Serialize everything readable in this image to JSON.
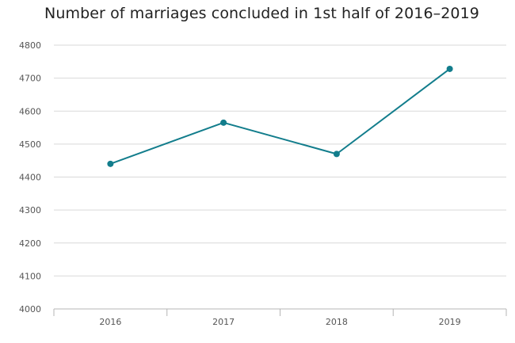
{
  "chart_data": {
    "type": "line",
    "title": "Number of marriages concluded in 1st half of 2016–2019",
    "xlabel": "",
    "ylabel": "",
    "categories": [
      "2016",
      "2017",
      "2018",
      "2019"
    ],
    "series": [
      {
        "values": [
          4440,
          4565,
          4470,
          4728
        ],
        "color": "#127d8c"
      }
    ],
    "ylim": [
      4000,
      4800
    ],
    "yticks": [
      "4000",
      "4100",
      "4200",
      "4300",
      "4400",
      "4500",
      "4600",
      "4700",
      "4800"
    ],
    "grid": true,
    "legend": "none"
  }
}
